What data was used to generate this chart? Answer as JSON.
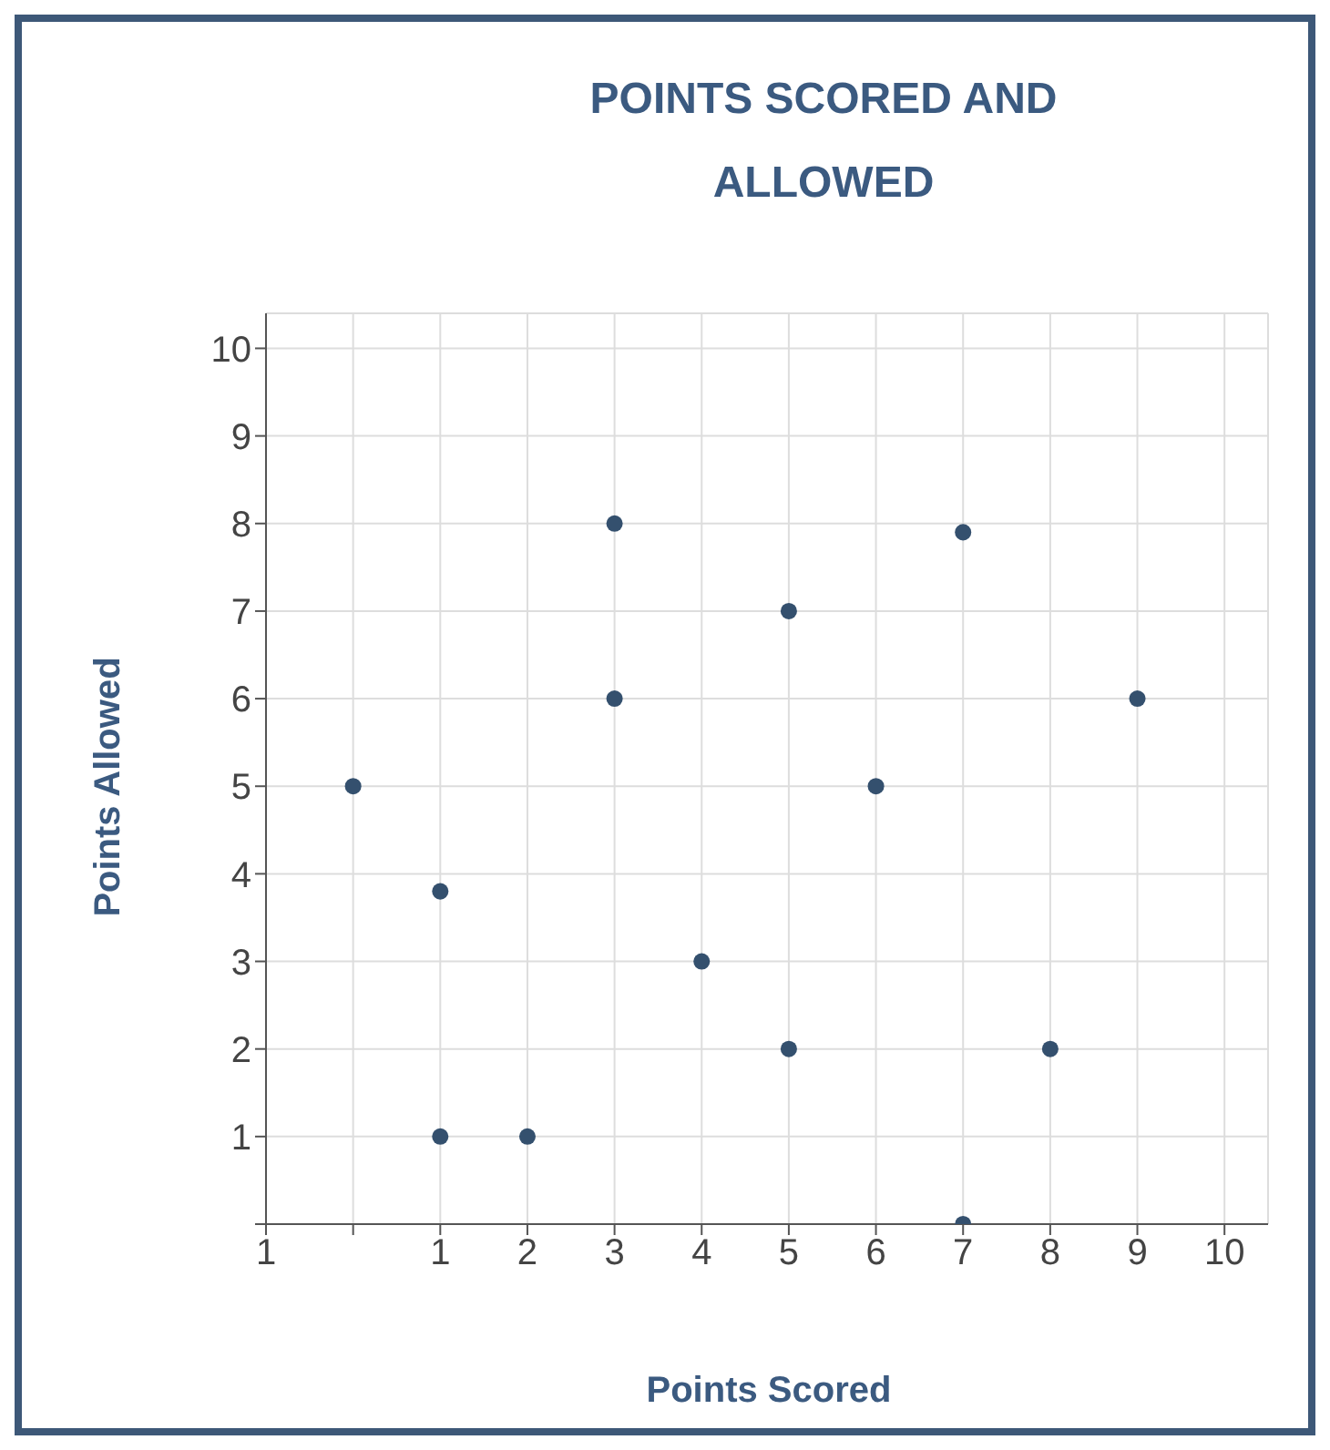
{
  "chart_data": {
    "type": "scatter",
    "title": "POINTS SCORED AND ALLOWED",
    "xlabel": "Points Scored",
    "ylabel": "Points Allowed",
    "x": [
      0,
      1,
      1,
      2,
      3,
      3,
      4,
      5,
      5,
      6,
      7,
      7,
      8,
      9
    ],
    "series": [
      {
        "color": "#34506e",
        "values": [
          5,
          3.8,
          1,
          1,
          8,
          6,
          3,
          7,
          2,
          5,
          7.9,
          0,
          2,
          6
        ]
      }
    ],
    "xlim": [
      -1,
      10.5
    ],
    "ylim": [
      0,
      10.4
    ],
    "xticks": [
      {
        "value": -1,
        "label": "1"
      },
      {
        "value": 0,
        "label": null
      },
      1,
      2,
      3,
      4,
      5,
      6,
      7,
      8,
      9,
      10
    ],
    "yticks": [
      {
        "value": 0,
        "label": null
      },
      1,
      2,
      3,
      4,
      5,
      6,
      7,
      8,
      9,
      10
    ],
    "grid": true,
    "marker": "circle"
  }
}
